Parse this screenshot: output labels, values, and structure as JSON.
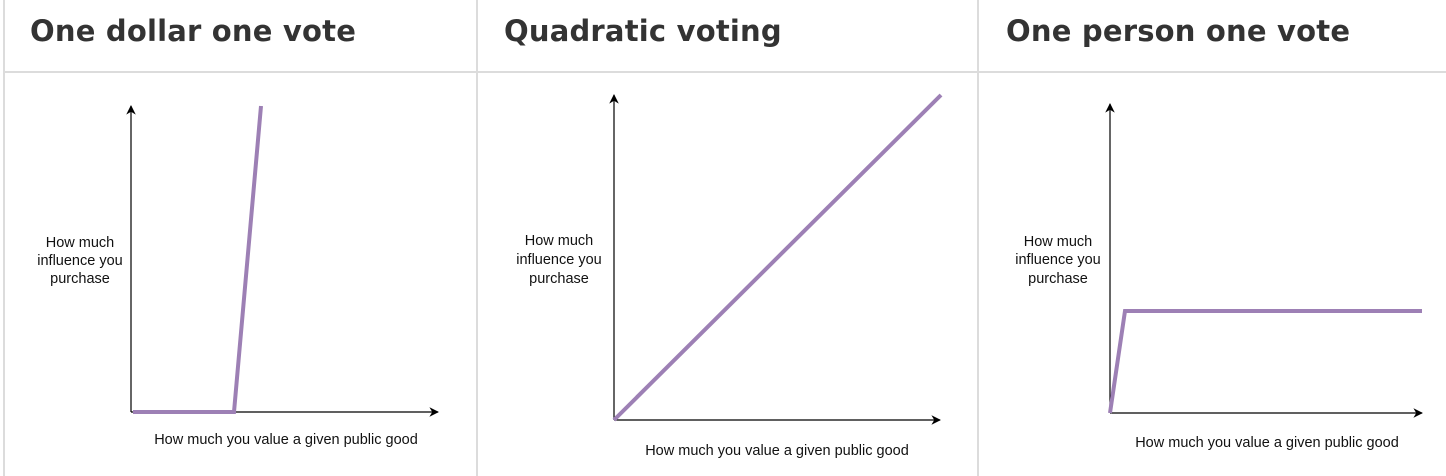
{
  "columns": [
    {
      "title": "One dollar one vote",
      "y_label": [
        "How much",
        "influence you",
        "purchase"
      ],
      "x_label": "How much you value a given public good"
    },
    {
      "title": "Quadratic voting",
      "y_label": [
        "How much",
        "influence you",
        "purchase"
      ],
      "x_label": "How much you value a given public good"
    },
    {
      "title": "One person one vote",
      "y_label": [
        "How much",
        "influence you",
        "purchase"
      ],
      "x_label": "How much you value a given public good"
    }
  ],
  "colors": {
    "curve": "#9d80b5",
    "axis": "#000000",
    "border": "#dcdcdc",
    "heading": "#333333"
  }
}
